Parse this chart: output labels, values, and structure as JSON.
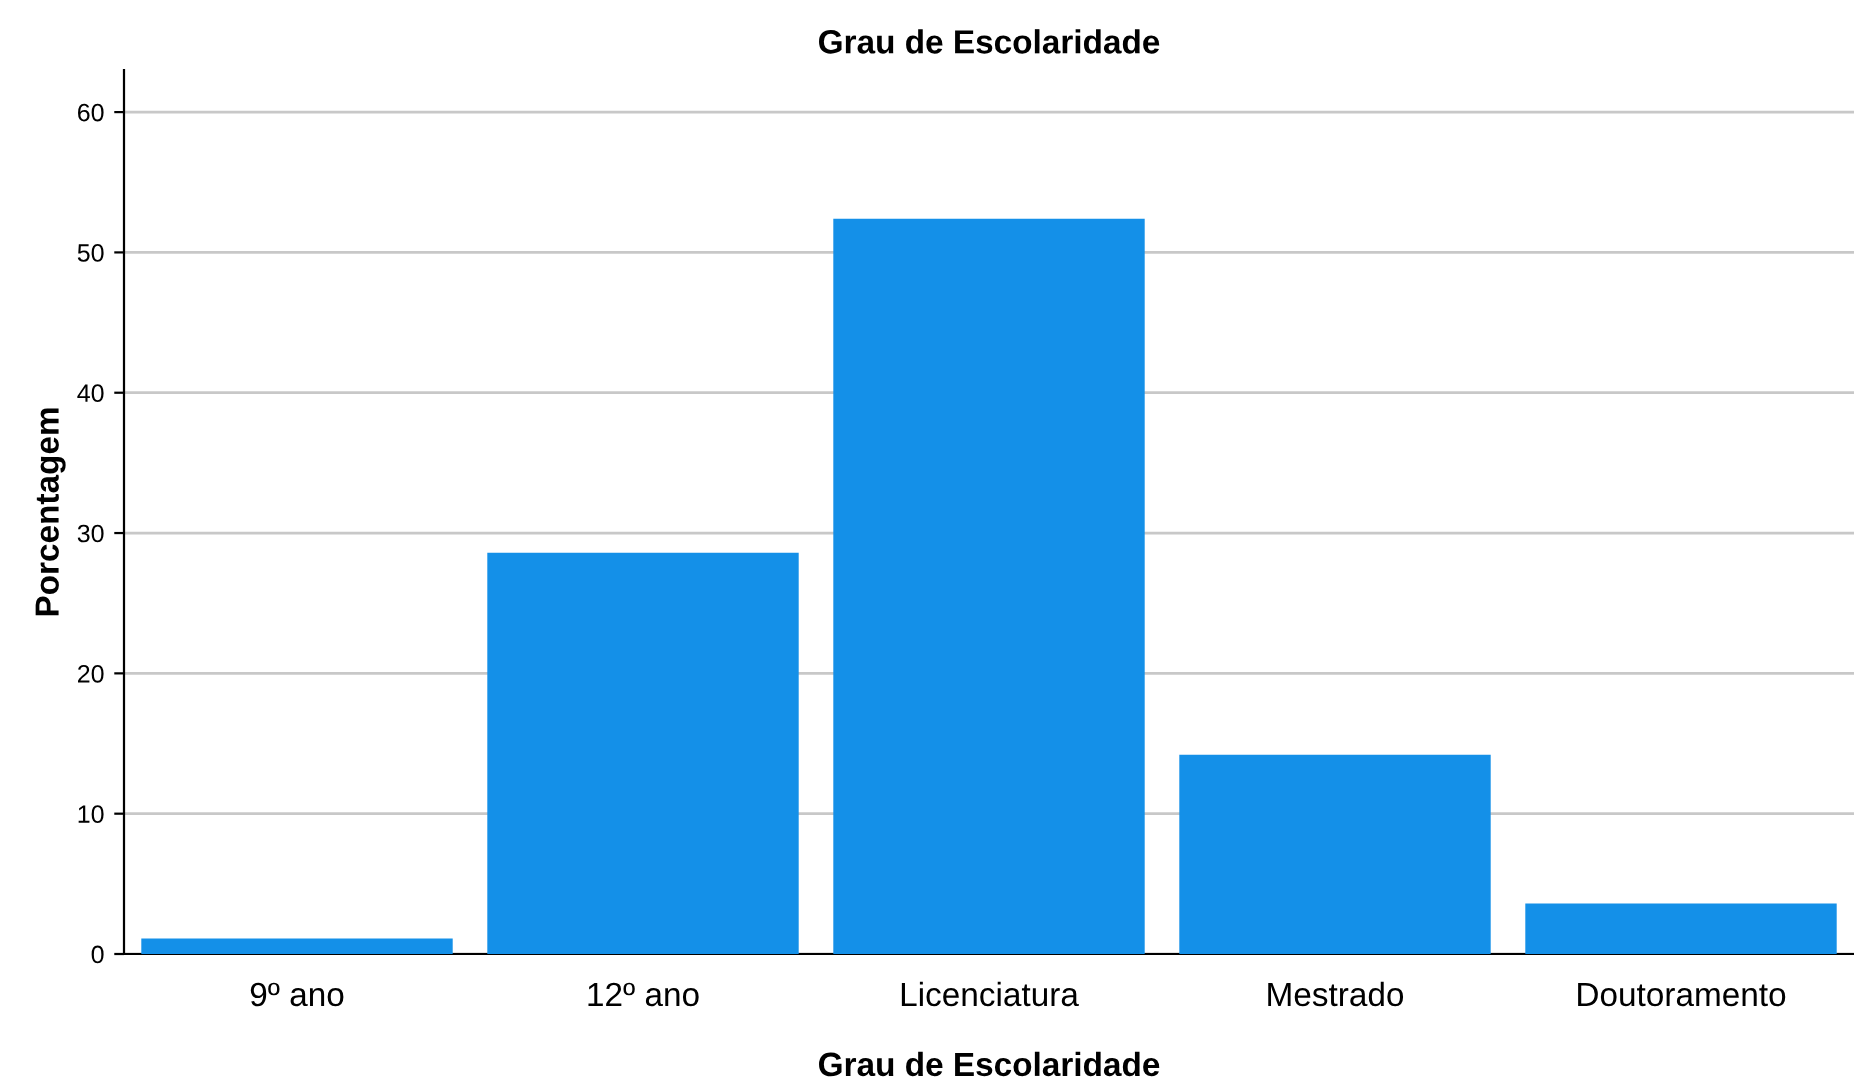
{
  "chart_data": {
    "type": "bar",
    "title": "Grau de Escolaridade",
    "xlabel": "Grau de Escolaridade",
    "ylabel": "Porcentagem",
    "categories": [
      "9º ano",
      "12º ano",
      "Licenciatura",
      "Mestrado",
      "Doutoramento"
    ],
    "values": [
      1.1,
      28.6,
      52.4,
      14.2,
      3.6
    ],
    "color": "#1490e8",
    "ylim": [
      0,
      63
    ],
    "yticks": [
      0,
      10,
      20,
      30,
      40,
      50,
      60
    ],
    "grid": "y",
    "legend": false
  }
}
